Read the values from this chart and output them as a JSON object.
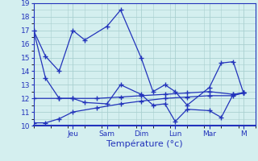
{
  "background_color": "#d4efef",
  "grid_color": "#aad0d0",
  "line_color": "#2233bb",
  "marker": "+",
  "marker_size": 4,
  "marker_lw": 1.0,
  "line_width": 0.9,
  "ylim": [
    10,
    19
  ],
  "xlim": [
    0,
    6.5
  ],
  "yticks": [
    10,
    11,
    12,
    13,
    14,
    15,
    16,
    17,
    18,
    19
  ],
  "xlabel": "Température (°c)",
  "xlabel_fontsize": 8,
  "tick_fontsize": 6.5,
  "day_labels": [
    "Jeu",
    "Sam",
    "Dim",
    "Lun",
    "Mar",
    "M"
  ],
  "day_positions": [
    1.15,
    2.15,
    3.15,
    4.15,
    5.15,
    6.15
  ],
  "series": [
    {
      "x": [
        0.0,
        0.35,
        0.75,
        1.15,
        1.5,
        2.15,
        2.55,
        3.15,
        3.5,
        3.85,
        4.15,
        4.5,
        5.15,
        5.5,
        5.85,
        6.15
      ],
      "y": [
        17.0,
        15.1,
        14.0,
        17.0,
        16.3,
        17.3,
        18.5,
        15.0,
        12.5,
        13.0,
        12.5,
        11.5,
        12.8,
        14.6,
        14.7,
        12.4
      ]
    },
    {
      "x": [
        0.0,
        0.35,
        0.75,
        1.15,
        1.5,
        2.15,
        2.55,
        3.15,
        3.5,
        3.85,
        4.15,
        4.5,
        5.15,
        5.5,
        5.85,
        6.15
      ],
      "y": [
        17.0,
        13.5,
        12.0,
        12.0,
        11.7,
        11.6,
        13.0,
        12.3,
        11.5,
        11.6,
        10.3,
        11.2,
        11.1,
        10.6,
        12.3,
        12.4
      ]
    },
    {
      "x": [
        0.0,
        0.75,
        1.15,
        1.85,
        2.55,
        3.15,
        3.85,
        4.5,
        5.15,
        5.85,
        6.15
      ],
      "y": [
        12.0,
        12.0,
        12.0,
        12.0,
        12.1,
        12.2,
        12.3,
        12.4,
        12.5,
        12.3,
        12.4
      ]
    },
    {
      "x": [
        0.0,
        0.35,
        0.75,
        1.15,
        1.85,
        2.55,
        3.15,
        3.85,
        4.5,
        5.15,
        5.85,
        6.15
      ],
      "y": [
        10.2,
        10.2,
        10.5,
        11.0,
        11.3,
        11.6,
        11.8,
        12.0,
        12.1,
        12.2,
        12.2,
        12.4
      ]
    }
  ]
}
